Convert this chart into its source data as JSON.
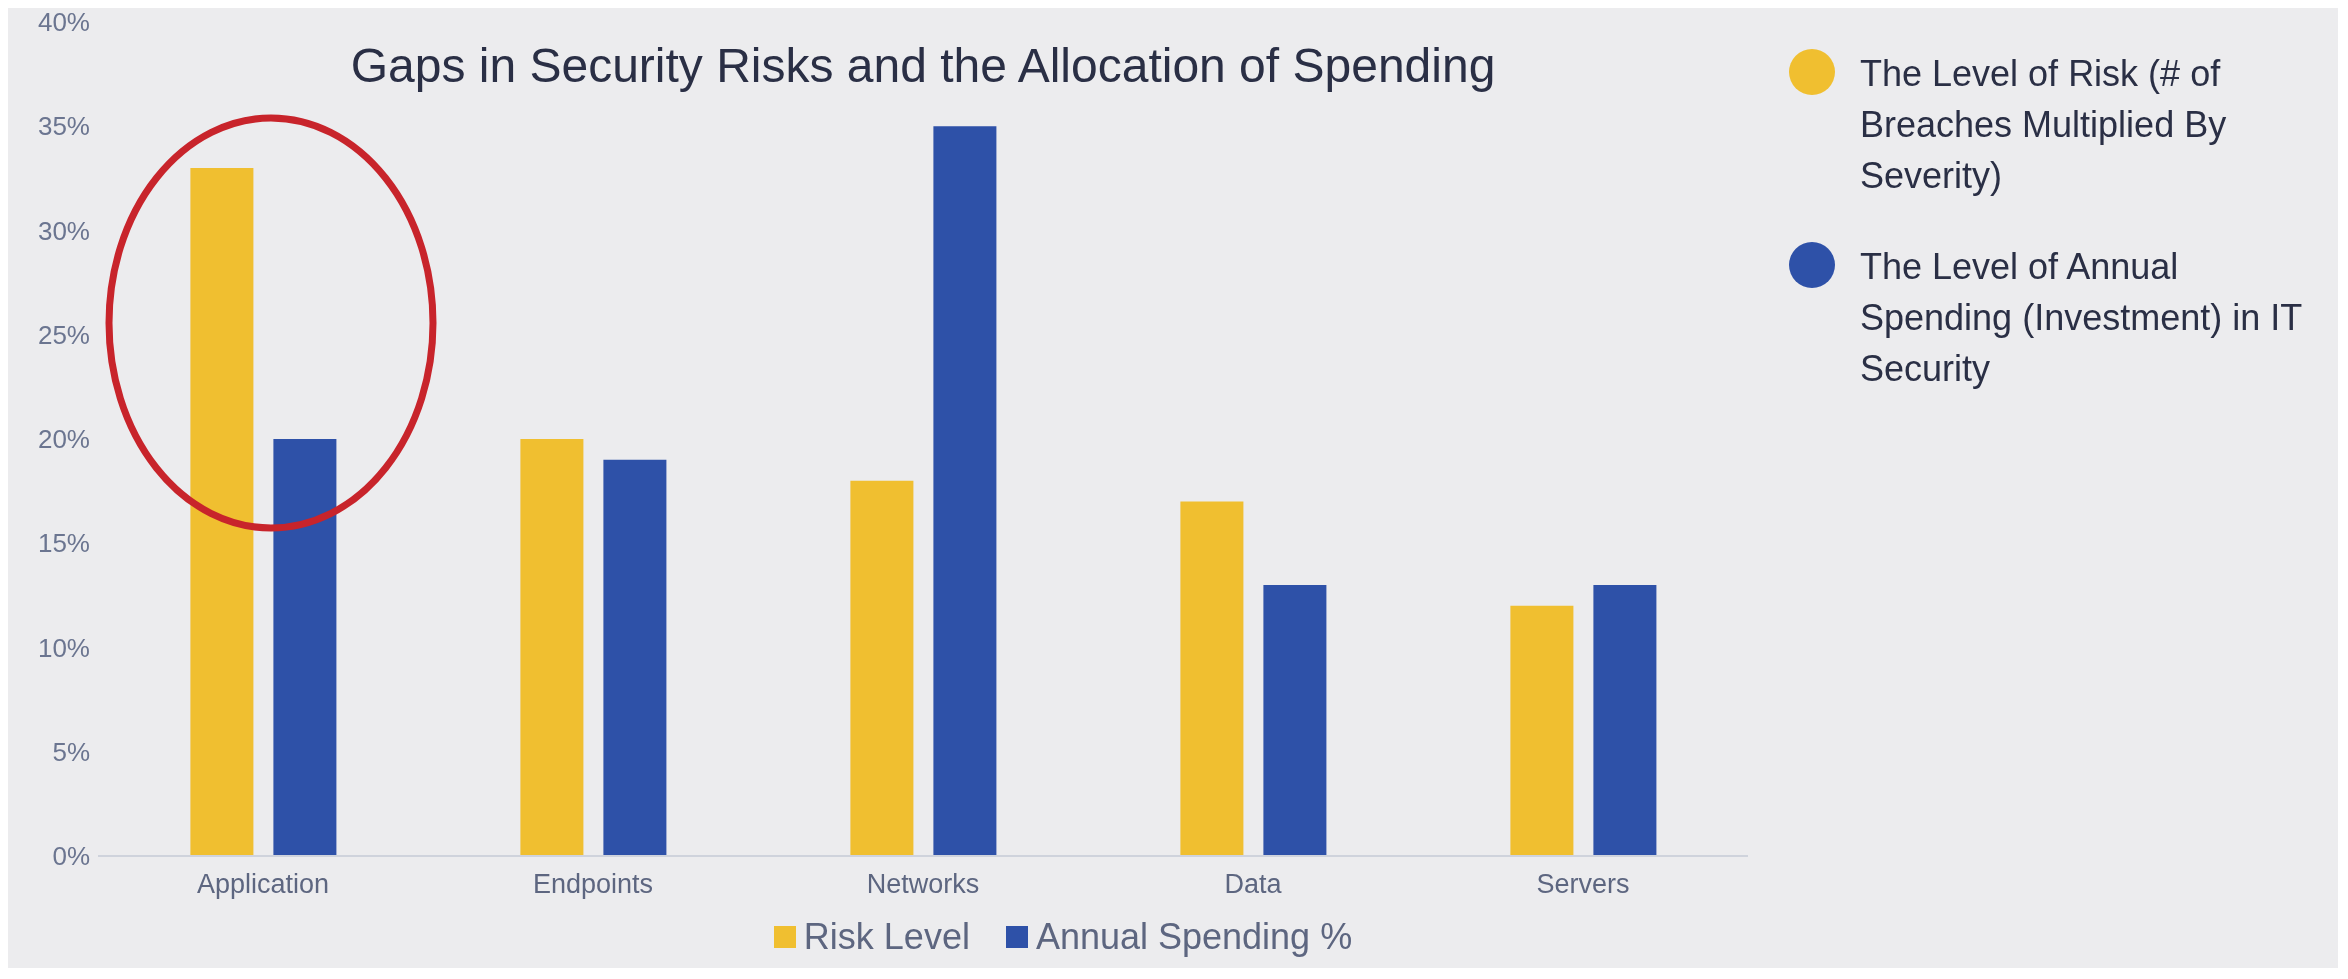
{
  "chart_data": {
    "type": "bar",
    "title": "Gaps in Security Risks and the Allocation of Spending",
    "categories": [
      "Application",
      "Endpoints",
      "Networks",
      "Data",
      "Servers"
    ],
    "series": [
      {
        "name": "Risk Level",
        "color": "#f0bf30",
        "values": [
          33,
          20,
          18,
          17,
          12
        ]
      },
      {
        "name": "Annual Spending %",
        "color": "#2e51a8",
        "values": [
          20,
          19,
          35,
          13,
          13
        ]
      }
    ],
    "ylim": [
      0,
      40
    ],
    "yticks": [
      {
        "value": 0,
        "label": "0%"
      },
      {
        "value": 5,
        "label": "5%"
      },
      {
        "value": 10,
        "label": "10%"
      },
      {
        "value": 15,
        "label": "15%"
      },
      {
        "value": 20,
        "label": "20%"
      },
      {
        "value": 25,
        "label": "25%"
      },
      {
        "value": 30,
        "label": "30%"
      },
      {
        "value": 35,
        "label": "35%"
      },
      {
        "value": 40,
        "label": "40%"
      }
    ],
    "grid": false,
    "legend": "bottom",
    "annotations": [
      "The Level of Risk (# of Breaches Multiplied By Severity)",
      "The Level of Annual Spending (Investment) in IT Security"
    ]
  }
}
